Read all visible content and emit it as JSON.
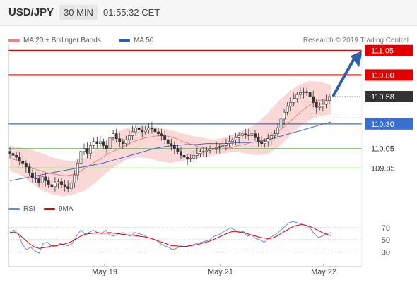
{
  "header": {
    "symbol": "USD/JPY",
    "timeframe": "30 MIN",
    "time": "01:55:32 CET"
  },
  "legend": {
    "ma20_bb": "MA 20 + Bollinger Bands",
    "ma50": "MA 50",
    "credit": "Research © 2019 Trading Central"
  },
  "colors": {
    "resistance": "#e00000",
    "support_pivot": "#3a6fd0",
    "support": "#8bc37a",
    "candle_up": "#ffffff",
    "candle_down": "#333333",
    "bollinger_fill": "#fbd4d4",
    "ma20": "#f08080",
    "ma50": "#4a64c8",
    "rsi": "#6a8ad8",
    "rsi_ma": "#e00000",
    "arrow": "#2f5fa8"
  },
  "levels": [
    {
      "value": 111.05,
      "label": "111.05",
      "kind": "resistance"
    },
    {
      "value": 110.8,
      "label": "110.80",
      "kind": "resistance"
    },
    {
      "value": 110.58,
      "label": "110.58",
      "kind": "last"
    },
    {
      "value": 110.3,
      "label": "110.30",
      "kind": "pivot"
    },
    {
      "value": 110.05,
      "label": "110.05",
      "kind": "support"
    },
    {
      "value": 109.85,
      "label": "109.85",
      "kind": "support"
    }
  ],
  "rsi_panel": {
    "legend_rsi": "RSI",
    "legend_ma": "9MA",
    "ticks": [
      "70",
      "50",
      "30"
    ],
    "tick_values": [
      70,
      50,
      30
    ],
    "range": [
      20,
      85
    ]
  },
  "chart_data": {
    "type": "line",
    "y_range": [
      109.55,
      111.12
    ],
    "x_labels": [
      "May 19",
      "May 21",
      "May 22"
    ],
    "candle_close": [
      110.0,
      109.98,
      109.96,
      109.92,
      109.9,
      109.86,
      109.8,
      109.75,
      109.74,
      109.7,
      109.76,
      109.72,
      109.68,
      109.66,
      109.7,
      109.71,
      109.68,
      109.66,
      109.64,
      109.7,
      109.78,
      109.9,
      110.02,
      110.05,
      110.0,
      110.08,
      110.12,
      110.1,
      110.12,
      110.08,
      110.05,
      110.16,
      110.2,
      110.15,
      110.12,
      110.1,
      110.14,
      110.18,
      110.22,
      110.26,
      110.24,
      110.22,
      110.24,
      110.26,
      110.25,
      110.22,
      110.2,
      110.18,
      110.14,
      110.1,
      110.08,
      110.05,
      110.02,
      109.98,
      109.96,
      109.94,
      109.95,
      109.98,
      110.0,
      110.02,
      110.02,
      110.03,
      110.04,
      110.05,
      110.06,
      110.07,
      110.08,
      110.1,
      110.12,
      110.14,
      110.16,
      110.18,
      110.2,
      110.19,
      110.18,
      110.2,
      110.16,
      110.12,
      110.1,
      110.12,
      110.15,
      110.18,
      110.2,
      110.26,
      110.35,
      110.42,
      110.48,
      110.52,
      110.56,
      110.6,
      110.62,
      110.63,
      110.62,
      110.58,
      110.52,
      110.47,
      110.48,
      110.5,
      110.54,
      110.58
    ],
    "ma20": [
      109.95,
      109.93,
      109.9,
      109.87,
      109.84,
      109.82,
      109.8,
      109.79,
      109.78,
      109.77,
      109.78,
      109.8,
      109.84,
      109.88,
      109.92,
      109.96,
      110.0,
      110.03,
      110.06,
      110.09,
      110.12,
      110.14,
      110.16,
      110.17,
      110.18,
      110.18,
      110.17,
      110.15,
      110.12,
      110.1,
      110.08,
      110.06,
      110.05,
      110.04,
      110.04,
      110.05,
      110.06,
      110.08,
      110.09,
      110.11,
      110.12,
      110.14,
      110.16,
      110.2,
      110.25,
      110.3,
      110.36,
      110.42,
      110.47,
      110.51,
      110.54,
      110.55,
      110.56
    ],
    "ma50": [
      109.72,
      109.74,
      109.76,
      109.78,
      109.8,
      109.82,
      109.84,
      109.86,
      109.88,
      109.9,
      109.93,
      109.96,
      109.99,
      110.02,
      110.05,
      110.07,
      110.08,
      110.09,
      110.09,
      110.1,
      110.1,
      110.1,
      110.11,
      110.11,
      110.12,
      110.14,
      110.17,
      110.2,
      110.23,
      110.26,
      110.29,
      110.32
    ],
    "bb_upper": [
      110.08,
      110.06,
      110.04,
      110.0,
      109.96,
      109.93,
      109.92,
      109.96,
      110.04,
      110.14,
      110.22,
      110.26,
      110.28,
      110.28,
      110.26,
      110.24,
      110.21,
      110.18,
      110.16,
      110.14,
      110.16,
      110.2,
      110.24,
      110.3,
      110.4,
      110.52,
      110.62,
      110.7,
      110.74,
      110.73,
      110.7
    ],
    "bb_lower": [
      109.82,
      109.78,
      109.7,
      109.62,
      109.58,
      109.56,
      109.58,
      109.62,
      109.7,
      109.8,
      109.88,
      109.94,
      109.96,
      109.95,
      109.92,
      109.9,
      109.92,
      109.94,
      109.96,
      109.98,
      110.0,
      110.02,
      110.0,
      109.98,
      109.99,
      110.05,
      110.16,
      110.26,
      110.34,
      110.38,
      110.4
    ],
    "rsi": [
      64,
      66,
      60,
      42,
      34,
      38,
      32,
      28,
      44,
      46,
      40,
      38,
      44,
      42,
      40,
      44,
      56,
      66,
      60,
      62,
      66,
      62,
      60,
      66,
      58,
      56,
      60,
      62,
      58,
      56,
      62,
      60,
      58,
      54,
      52,
      50,
      44,
      40,
      38,
      34,
      36,
      40,
      38,
      40,
      42,
      44,
      46,
      48,
      50,
      56,
      58,
      62,
      66,
      70,
      66,
      62,
      64,
      56,
      58,
      52,
      50,
      46,
      52,
      56,
      60,
      66,
      72,
      78,
      80,
      78,
      76,
      74,
      70,
      60,
      54,
      56,
      60,
      62
    ],
    "rsi_ma": [
      62,
      63,
      60,
      54,
      48,
      42,
      38,
      36,
      37,
      38,
      40,
      40,
      42,
      43,
      45,
      48,
      52,
      56,
      59,
      60,
      61,
      62,
      61,
      61,
      62,
      61,
      60,
      59,
      58,
      58,
      57,
      56,
      55,
      54,
      52,
      50,
      47,
      45,
      42,
      40,
      40,
      39,
      39,
      40,
      41,
      42,
      44,
      46,
      48,
      51,
      54,
      57,
      60,
      63,
      64,
      63,
      62,
      60,
      58,
      56,
      54,
      53,
      52,
      53,
      56,
      60,
      64,
      68,
      72,
      74,
      75,
      74,
      72,
      69,
      65,
      62,
      59,
      57
    ]
  }
}
